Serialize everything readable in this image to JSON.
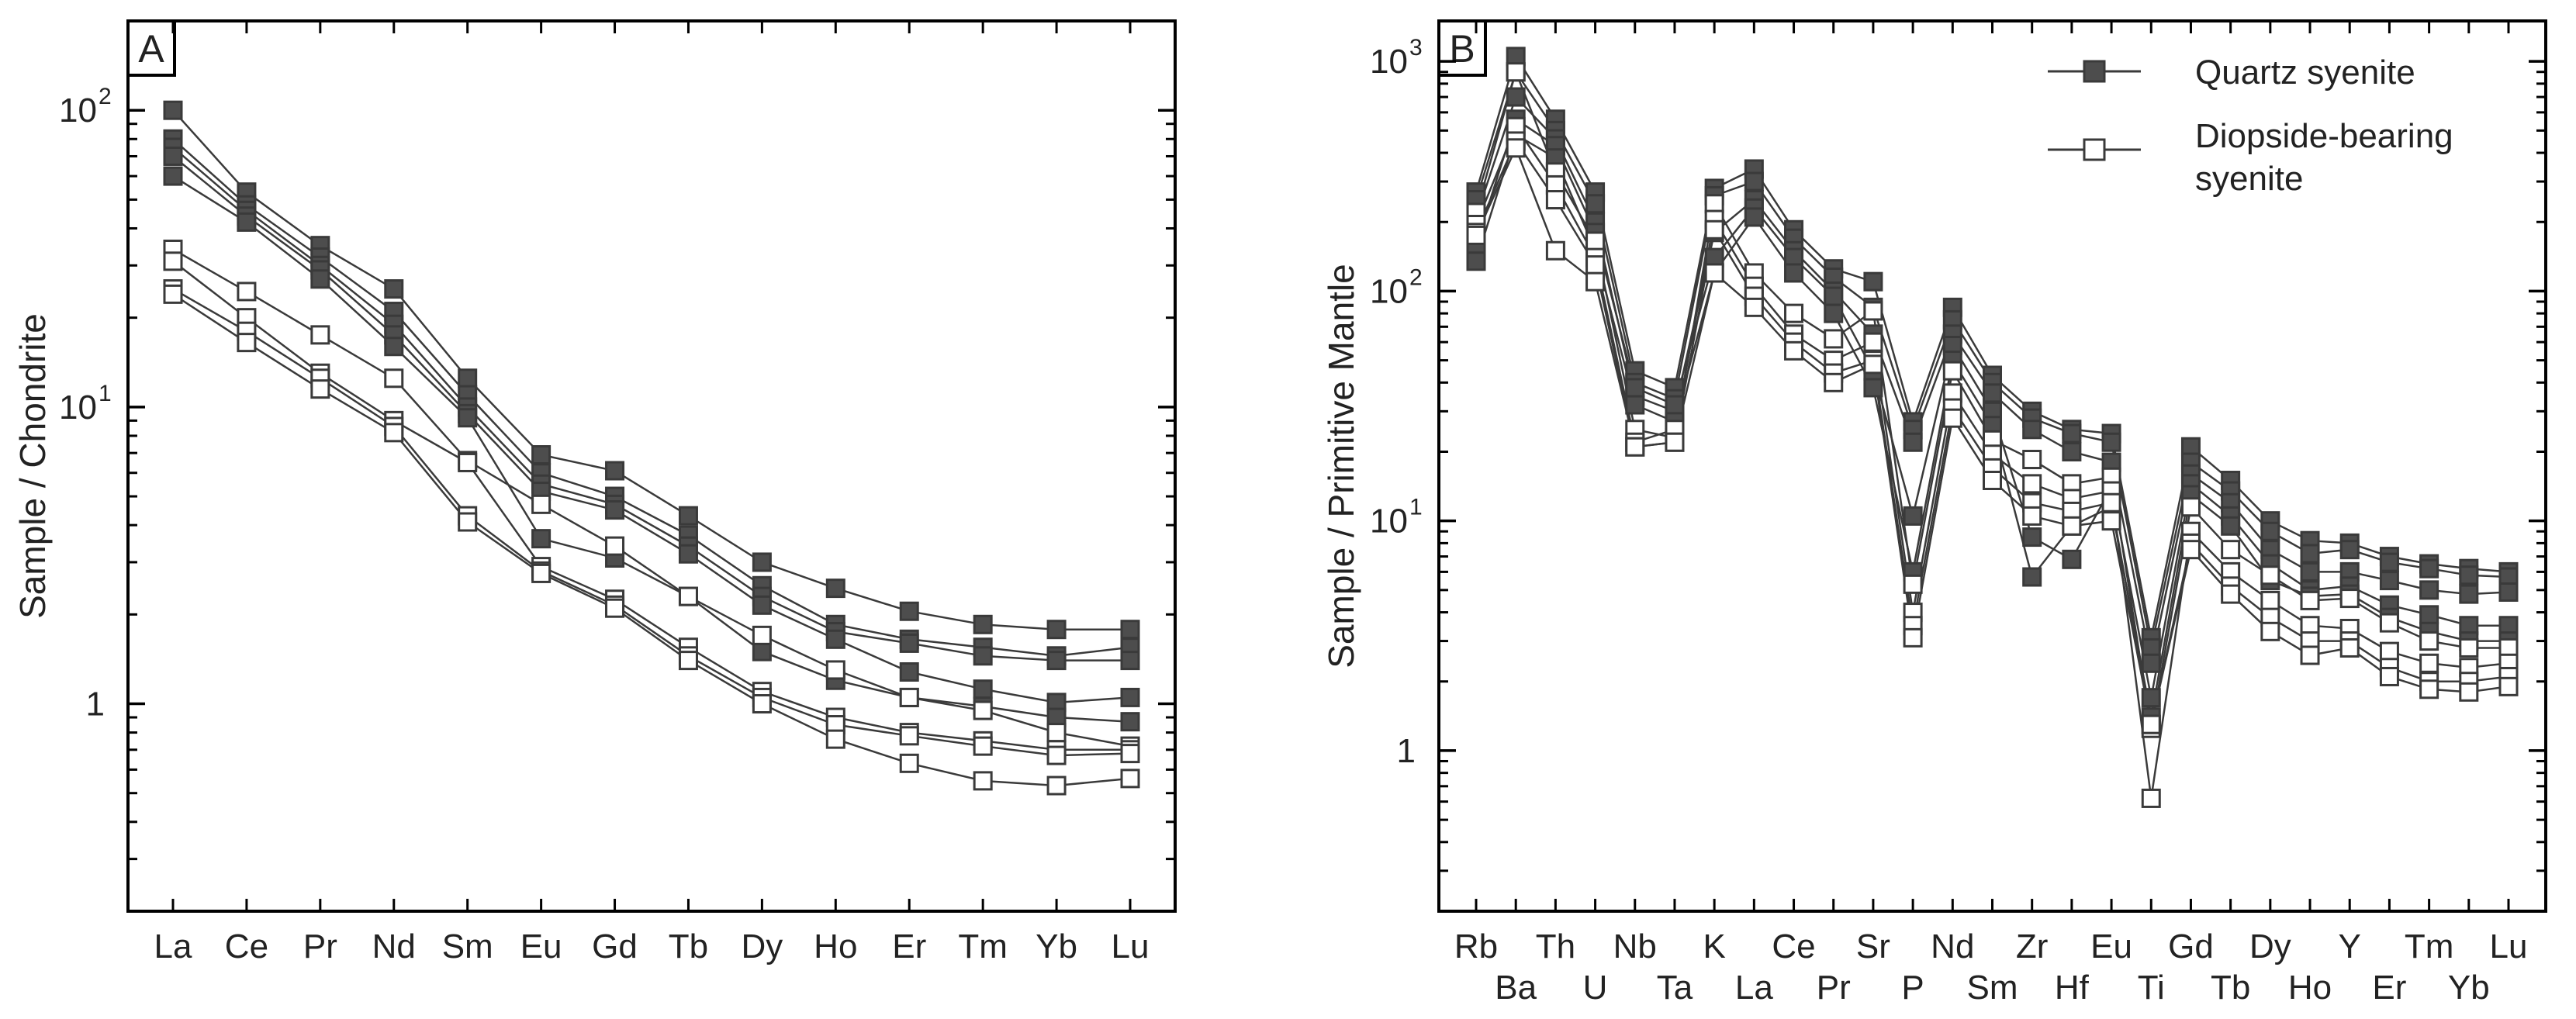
{
  "colors": {
    "quartz_fill": "#4d4d4d",
    "diopside_fill": "#ffffff",
    "line": "#3a3a3a",
    "axis": "#000000"
  },
  "legend": {
    "quartz_label": "Quartz syenite",
    "diopside_line1": "Diopside-bearing",
    "diopside_line2": "syenite"
  },
  "chart_data": [
    {
      "panel": "A",
      "type": "line",
      "scale": "log",
      "ylabel": "Sample / Chondrite",
      "ylim": [
        0.2,
        200
      ],
      "yticks": [
        {
          "value": 1,
          "base": "1",
          "exp": ""
        },
        {
          "value": 10,
          "base": "10",
          "exp": "1"
        },
        {
          "value": 100,
          "base": "10",
          "exp": "2"
        }
      ],
      "categories": [
        "La",
        "Ce",
        "Pr",
        "Nd",
        "Sm",
        "Eu",
        "Gd",
        "Tb",
        "Dy",
        "Ho",
        "Er",
        "Tm",
        "Yb",
        "Lu"
      ],
      "series": [
        {
          "name": "Quartz syenite",
          "group": "quartz",
          "values": [
            100,
            53,
            35,
            25,
            12.5,
            6.9,
            6.1,
            4.3,
            3.0,
            2.45,
            2.05,
            1.85,
            1.78,
            1.78
          ]
        },
        {
          "name": "Quartz syenite",
          "group": "quartz",
          "values": [
            80,
            48,
            32,
            21,
            11.0,
            6.0,
            5.0,
            3.7,
            2.5,
            1.85,
            1.65,
            1.55,
            1.45,
            1.55
          ]
        },
        {
          "name": "Quartz syenite",
          "group": "quartz",
          "values": [
            75,
            46,
            30,
            19,
            10.0,
            5.5,
            4.7,
            3.4,
            2.3,
            1.75,
            1.6,
            1.45,
            1.4,
            1.4
          ]
        },
        {
          "name": "Quartz syenite",
          "group": "quartz",
          "values": [
            70,
            44,
            29,
            17.5,
            9.5,
            5.2,
            4.5,
            3.2,
            2.15,
            1.65,
            1.28,
            1.12,
            1.01,
            1.05
          ]
        },
        {
          "name": "Quartz syenite",
          "group": "quartz",
          "values": [
            60,
            42,
            27,
            16,
            9.2,
            3.6,
            3.1,
            2.3,
            1.5,
            1.2,
            1.05,
            0.98,
            0.9,
            0.87
          ]
        },
        {
          "name": "Diopside-bearing syenite",
          "group": "diopside",
          "values": [
            34,
            24.5,
            17.5,
            12.5,
            6.6,
            4.7,
            3.4,
            2.3,
            1.7,
            1.3,
            1.05,
            0.95,
            0.8,
            0.72
          ]
        },
        {
          "name": "Diopside-bearing syenite",
          "group": "diopside",
          "values": [
            31,
            20,
            13,
            9.0,
            6.5,
            2.9,
            2.25,
            1.55,
            1.1,
            0.9,
            0.8,
            0.75,
            0.7,
            0.7
          ]
        },
        {
          "name": "Diopside-bearing syenite",
          "group": "diopside",
          "values": [
            25,
            18,
            12.5,
            8.6,
            4.3,
            2.8,
            2.15,
            1.45,
            1.05,
            0.85,
            0.78,
            0.72,
            0.67,
            0.68
          ]
        },
        {
          "name": "Diopside-bearing syenite",
          "group": "diopside",
          "values": [
            24,
            16.5,
            11.5,
            8.2,
            4.1,
            2.75,
            2.1,
            1.4,
            1.0,
            0.76,
            0.63,
            0.55,
            0.53,
            0.56
          ]
        }
      ]
    },
    {
      "panel": "B",
      "type": "line",
      "scale": "log",
      "ylabel": "Sample / Primitive Mantle",
      "ylim": [
        0.2,
        1500
      ],
      "yticks": [
        {
          "value": 1,
          "base": "1",
          "exp": ""
        },
        {
          "value": 10,
          "base": "10",
          "exp": "1"
        },
        {
          "value": 100,
          "base": "10",
          "exp": "2"
        },
        {
          "value": 1000,
          "base": "10",
          "exp": "3"
        }
      ],
      "categories": [
        "Rb",
        "Ba",
        "Th",
        "U",
        "Nb",
        "Ta",
        "K",
        "La",
        "Ce",
        "Pr",
        "Sr",
        "P",
        "Nd",
        "Sm",
        "Zr",
        "Hf",
        "Eu",
        "Ti",
        "Gd",
        "Tb",
        "Dy",
        "Ho",
        "Y",
        "Er",
        "Tm",
        "Yb",
        "Lu"
      ],
      "series": [
        {
          "name": "Quartz syenite",
          "group": "quartz",
          "values": [
            270,
            1050,
            560,
            270,
            45,
            38,
            280,
            340,
            185,
            125,
            110,
            27,
            85,
            43,
            30,
            25,
            24,
            3.1,
            21,
            15,
            10,
            8.2,
            8.0,
            7.0,
            6.5,
            6.2,
            6.0
          ]
        },
        {
          "name": "Quartz syenite",
          "group": "quartz",
          "values": [
            250,
            900,
            500,
            240,
            40,
            34,
            260,
            300,
            170,
            115,
            85,
            25,
            75,
            40,
            28,
            24,
            22,
            2.8,
            18,
            13.5,
            9.0,
            7.2,
            7.5,
            6.6,
            6.2,
            5.8,
            5.7
          ]
        },
        {
          "name": "Quartz syenite",
          "group": "quartz",
          "values": [
            210,
            700,
            460,
            200,
            35,
            30,
            180,
            250,
            150,
            100,
            65,
            22,
            65,
            36,
            25,
            20,
            18,
            2.4,
            16,
            12.0,
            7.5,
            6.0,
            6.0,
            5.5,
            5.0,
            4.8,
            4.9
          ]
        },
        {
          "name": "Quartz syenite",
          "group": "quartz",
          "values": [
            160,
            560,
            430,
            180,
            38,
            32,
            140,
            230,
            140,
            95,
            45,
            10.5,
            58,
            30,
            8.5,
            6.8,
            14,
            1.7,
            14.5,
            10.5,
            6.5,
            5.0,
            5.2,
            4.3,
            3.9,
            3.5,
            3.5
          ]
        },
        {
          "name": "Quartz syenite",
          "group": "quartz",
          "values": [
            135,
            480,
            380,
            150,
            32,
            27,
            120,
            210,
            120,
            80,
            38,
            6.0,
            50,
            26,
            5.7,
            9.5,
            11.5,
            1.4,
            13,
            9.5,
            5.5,
            4.7,
            4.8,
            3.8,
            3.3,
            3.0,
            3.0
          ]
        },
        {
          "name": "Diopside-bearing syenite",
          "group": "diopside",
          "values": [
            220,
            900,
            330,
            165,
            25,
            23,
            240,
            120,
            80,
            62,
            82,
            5.3,
            45,
            22.5,
            18.5,
            14.5,
            15.5,
            1.25,
            11.5,
            7.5,
            5.8,
            4.5,
            4.6,
            3.6,
            3.0,
            2.8,
            2.8
          ]
        },
        {
          "name": "Diopside-bearing syenite",
          "group": "diopside",
          "values": [
            195,
            520,
            290,
            140,
            22,
            25,
            205,
            105,
            65,
            50,
            60,
            4.0,
            36,
            19.5,
            14.5,
            12.5,
            13.5,
            0.62,
            9.0,
            6.0,
            4.5,
            3.5,
            3.4,
            2.7,
            2.4,
            2.3,
            2.4
          ]
        },
        {
          "name": "Diopside-bearing syenite",
          "group": "diopside",
          "values": [
            180,
            450,
            250,
            130,
            21,
            22,
            185,
            95,
            60,
            44,
            50,
            3.5,
            31,
            17,
            12,
            11,
            12,
            1.3,
            8.0,
            5.2,
            3.8,
            3.0,
            3.0,
            2.3,
            2.0,
            2.0,
            2.1
          ]
        },
        {
          "name": "Diopside-bearing syenite",
          "group": "diopside",
          "values": [
            175,
            420,
            150,
            110,
            21,
            22,
            120,
            85,
            55,
            40,
            48,
            3.1,
            28,
            15,
            10.5,
            9.5,
            10,
            1.3,
            7.5,
            4.8,
            3.3,
            2.6,
            2.8,
            2.1,
            1.85,
            1.8,
            1.9
          ]
        }
      ]
    }
  ]
}
